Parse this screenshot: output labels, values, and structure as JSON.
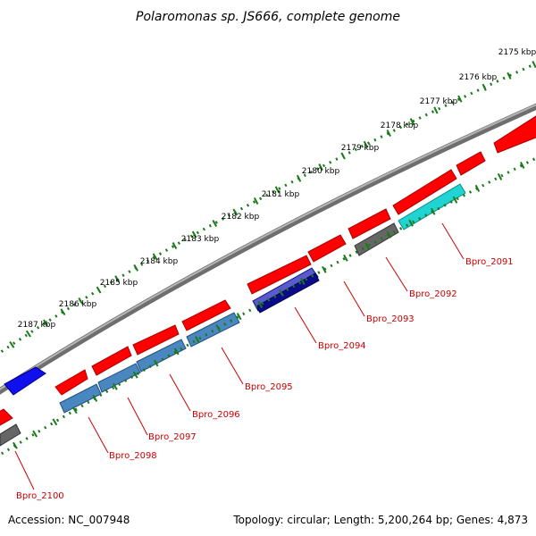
{
  "title": "Polaromonas sp. JS666, complete genome",
  "footer": {
    "accession": "Accession: NC_007948",
    "topology": "Topology: circular; Length: 5,200,264 bp; Genes: 4,873"
  },
  "ruler": {
    "ticks": [
      "2175 kbp",
      "2176 kbp",
      "2177 kbp",
      "2178 kbp",
      "2179 kbp",
      "2180 kbp",
      "2181 kbp",
      "2182 kbp",
      "2183 kbp",
      "2184 kbp",
      "2185 kbp",
      "2186 kbp",
      "2187 kbp"
    ]
  },
  "gene_labels": [
    "Bpro_2091",
    "Bpro_2092",
    "Bpro_2093",
    "Bpro_2094",
    "Bpro_2095",
    "Bpro_2096",
    "Bpro_2097",
    "Bpro_2098",
    "Bpro_2100"
  ],
  "colors": {
    "forward_strand": "#ff0000",
    "reverse_steelblue": "#4a86c0",
    "reverse_cyan": "#21d4d4",
    "reverse_gray": "#666666",
    "reverse_navy": "#0b0b8a",
    "reverse_blue": "#1010ee",
    "backbone": "#7a7a7a",
    "tick_marks": "#1a7a1a",
    "label_text": "#cc0000"
  }
}
